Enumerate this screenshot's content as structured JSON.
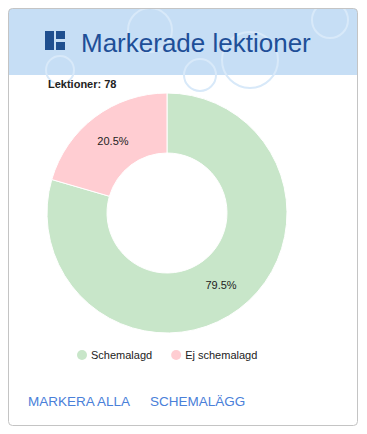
{
  "card": {
    "title": "Markerade lektioner",
    "buttons": [
      "MARKERA ALLA",
      "SCHEMALÄGG"
    ]
  },
  "chart_data": {
    "type": "donut",
    "title": "Lektioner: 78",
    "categories": [
      "Schemalagd",
      "Ej schemalagd"
    ],
    "values": [
      79.5,
      20.5
    ],
    "value_labels": [
      "79.5%",
      "20.5%"
    ],
    "colors": [
      "#c8e6c9",
      "#ffcdd2"
    ],
    "data_labels": true,
    "legend": "bottom"
  }
}
